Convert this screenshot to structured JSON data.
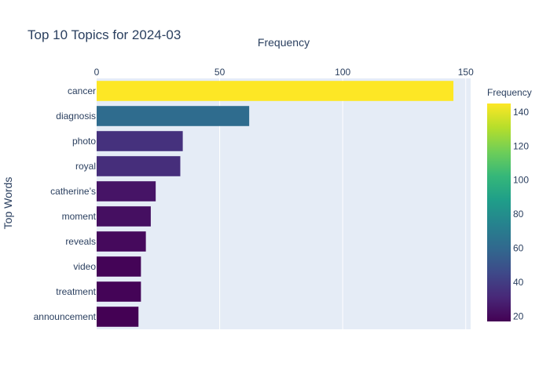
{
  "chart_data": {
    "type": "bar",
    "orientation": "horizontal",
    "title": "Top 10 Topics for 2024-03",
    "xlabel": "Frequency",
    "ylabel": "Top Words",
    "xaxis_side": "top",
    "xlim": [
      0,
      152
    ],
    "xticks": [
      0,
      50,
      100,
      150
    ],
    "categories": [
      "cancer",
      "diagnosis",
      "photo",
      "royal",
      "catherine’s",
      "moment",
      "reveals",
      "video",
      "treatment",
      "announcement"
    ],
    "values": [
      145,
      62,
      35,
      34,
      24,
      22,
      20,
      18,
      18,
      17
    ],
    "grid": true,
    "colorbar": {
      "title": "Frequency",
      "colorscale": "Viridis",
      "range": [
        17,
        145
      ],
      "ticks": [
        20,
        40,
        60,
        80,
        100,
        120,
        140
      ]
    },
    "colors": {
      "plot_background": "#e5ecf6",
      "text": "#2a3f5f",
      "grid": "#ffffff"
    }
  }
}
